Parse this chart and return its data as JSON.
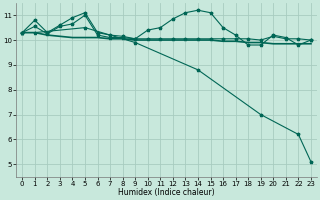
{
  "background_color": "#c8e8dc",
  "grid_color": "#a8ccc0",
  "line_color": "#006655",
  "xlabel": "Humidex (Indice chaleur)",
  "ylim": [
    4.5,
    11.5
  ],
  "xlim": [
    -0.5,
    23.5
  ],
  "yticks": [
    5,
    6,
    7,
    8,
    9,
    10,
    11
  ],
  "xticks": [
    0,
    1,
    2,
    3,
    4,
    5,
    6,
    7,
    8,
    9,
    10,
    11,
    12,
    13,
    14,
    15,
    16,
    17,
    18,
    19,
    20,
    21,
    22,
    23
  ],
  "series1_x": [
    0,
    1,
    2,
    3,
    4,
    5,
    6,
    7,
    8,
    9,
    10,
    11,
    12,
    13,
    14,
    15,
    16,
    17,
    18,
    19,
    20,
    21,
    22,
    23
  ],
  "series1_y": [
    10.3,
    10.8,
    10.3,
    10.6,
    10.9,
    11.1,
    10.3,
    10.2,
    10.15,
    10.05,
    10.4,
    10.5,
    10.85,
    11.1,
    11.2,
    11.1,
    10.5,
    10.2,
    9.8,
    9.8,
    10.2,
    10.1,
    9.8,
    10.0
  ],
  "series2_x": [
    0,
    1,
    2,
    3,
    4,
    5,
    6,
    7,
    8,
    9,
    10,
    11,
    12,
    13,
    14,
    15,
    16,
    17,
    18,
    19,
    20,
    21,
    22,
    23
  ],
  "series2_y": [
    10.3,
    10.3,
    10.2,
    10.15,
    10.1,
    10.1,
    10.1,
    10.05,
    10.05,
    10.0,
    10.0,
    10.0,
    10.0,
    10.0,
    10.0,
    10.0,
    9.95,
    9.95,
    9.9,
    9.9,
    9.85,
    9.85,
    9.85,
    9.85
  ],
  "series3_x": [
    0,
    1,
    2,
    3,
    4,
    5,
    6,
    7,
    8,
    9,
    10,
    11,
    12,
    13,
    14,
    15,
    16,
    17,
    18,
    19,
    20,
    21,
    22,
    23
  ],
  "series3_y": [
    10.3,
    10.55,
    10.25,
    10.55,
    10.65,
    11.0,
    10.2,
    10.1,
    10.1,
    10.05,
    10.05,
    10.05,
    10.05,
    10.05,
    10.05,
    10.05,
    10.05,
    10.05,
    10.05,
    10.0,
    10.15,
    10.05,
    10.05,
    10.0
  ],
  "series4_x": [
    0,
    1,
    5,
    9,
    14,
    19,
    22,
    23
  ],
  "series4_y": [
    10.3,
    10.3,
    10.5,
    9.9,
    8.8,
    7.0,
    6.2,
    5.1
  ]
}
